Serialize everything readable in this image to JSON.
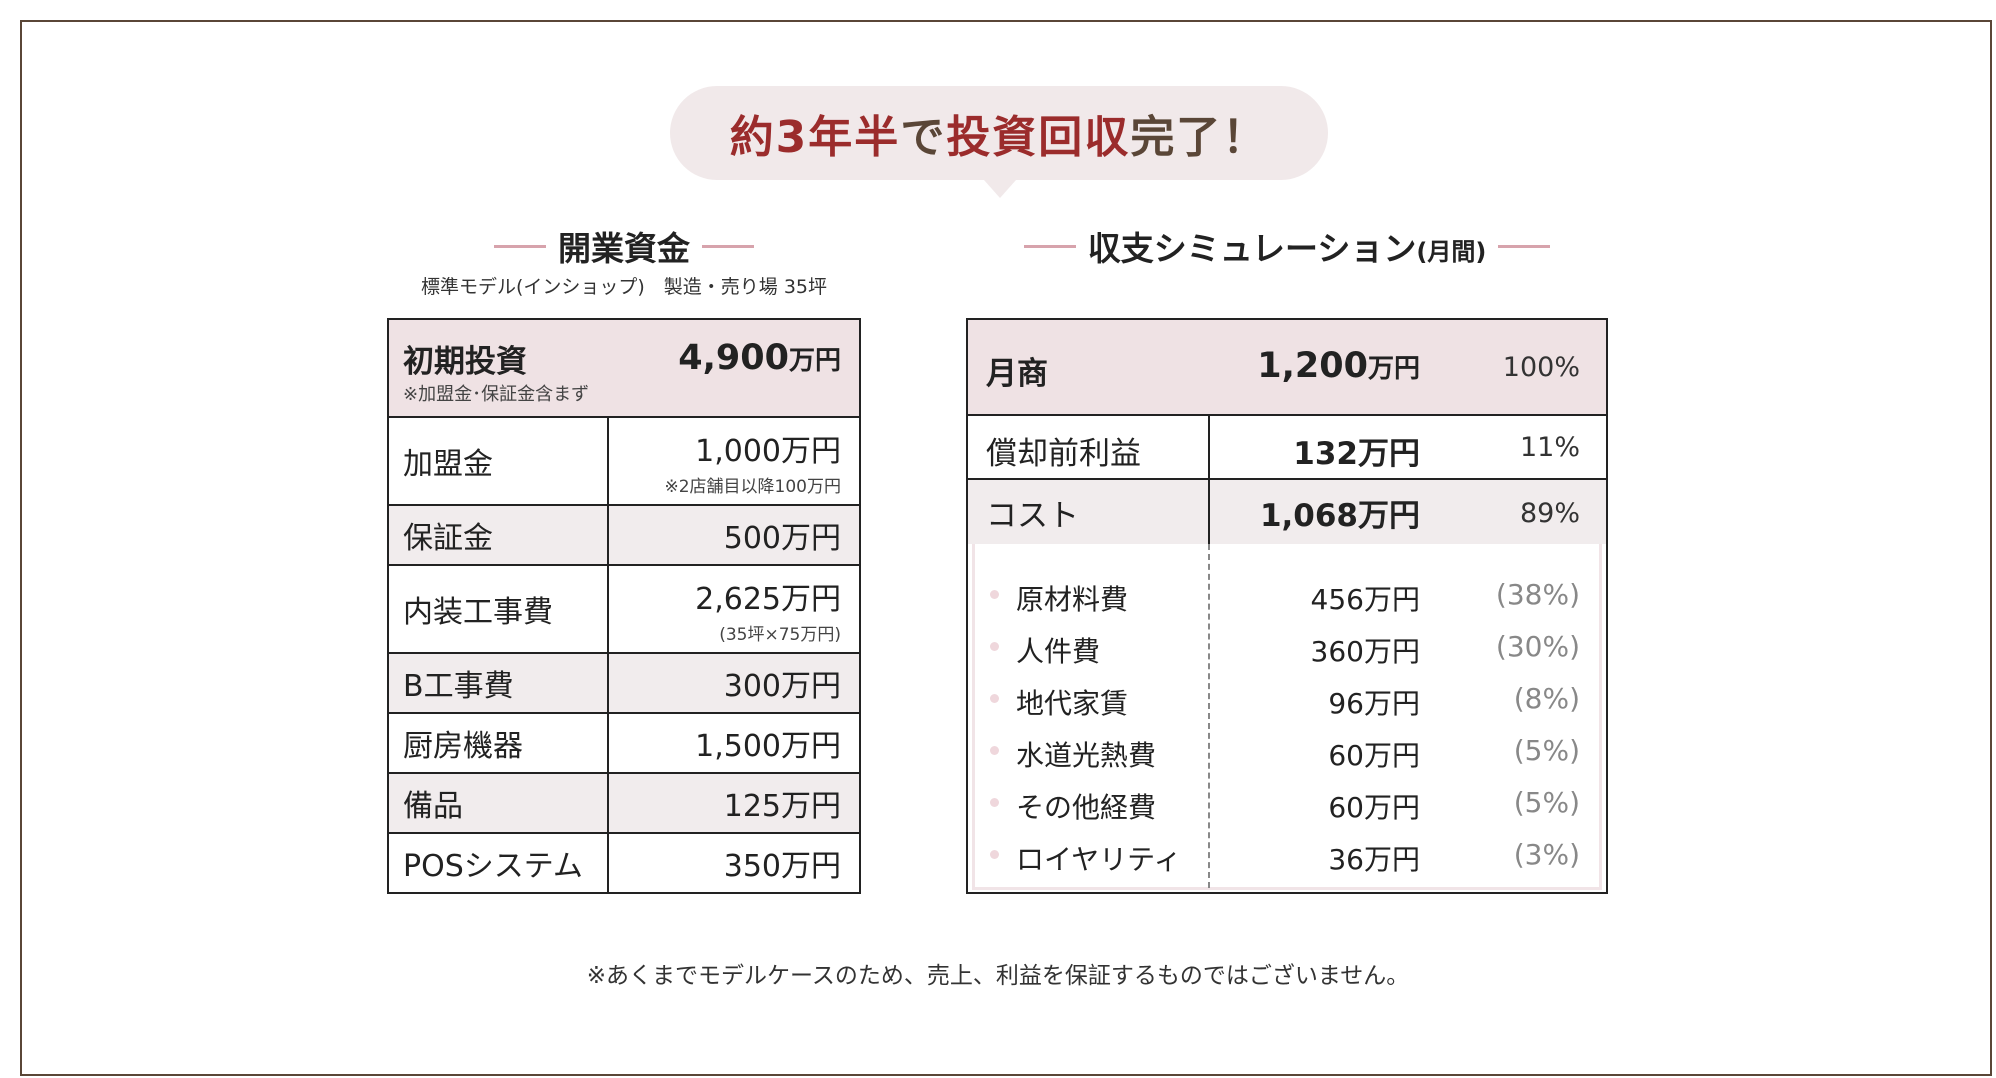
{
  "headline": {
    "highlight": "約3年半",
    "part2": "で",
    "highlight2": "投資回収",
    "part3": "完了！"
  },
  "startup": {
    "title": "開業資金",
    "subtitle": "標準モデル(インショップ)　製造・売り場 35坪",
    "initial": {
      "label": "初期投資",
      "note": "※加盟金･保証金含まず",
      "value": "4,900",
      "unit": "万円"
    },
    "rows": [
      {
        "label": "加盟金",
        "value": "1,000万円",
        "note": "※2店舗目以降100万円",
        "shade": false
      },
      {
        "label": "保証金",
        "value": "500万円",
        "note": "",
        "shade": true
      },
      {
        "label": "内装工事費",
        "value": "2,625万円",
        "note": "(35坪×75万円)",
        "shade": false
      },
      {
        "label": "B工事費",
        "value": "300万円",
        "note": "",
        "shade": true
      },
      {
        "label": "厨房機器",
        "value": "1,500万円",
        "note": "",
        "shade": false
      },
      {
        "label": "備品",
        "value": "125万円",
        "note": "",
        "shade": true
      },
      {
        "label": "POSシステム",
        "value": "350万円",
        "note": "",
        "shade": false
      }
    ]
  },
  "simulation": {
    "title": "収支シミュレーション",
    "title_suffix": "(月間)",
    "sales": {
      "label": "月商",
      "value": "1,200",
      "unit": "万円",
      "pct": "100%"
    },
    "profit": {
      "label": "償却前利益",
      "value": "132万円",
      "pct": "11%"
    },
    "cost": {
      "label": "コスト",
      "value": "1,068万円",
      "pct": "89%"
    },
    "items": [
      {
        "label": "原材料費",
        "value": "456万円",
        "pct": "(38%)"
      },
      {
        "label": "人件費",
        "value": "360万円",
        "pct": "(30%)"
      },
      {
        "label": "地代家賃",
        "value": "96万円",
        "pct": "(8%)"
      },
      {
        "label": "水道光熱費",
        "value": "60万円",
        "pct": "(5%)"
      },
      {
        "label": "その他経費",
        "value": "60万円",
        "pct": "(5%)"
      },
      {
        "label": "ロイヤリティ",
        "value": "36万円",
        "pct": "(3%)"
      }
    ]
  },
  "footer": "※あくまでモデルケースのため、売上、利益を保証するものではございません。",
  "colors": {
    "accent": "#9b2c2c",
    "brown": "#5a4637",
    "pink_bg": "#efe2e4",
    "dash": "#d7a3ac"
  }
}
